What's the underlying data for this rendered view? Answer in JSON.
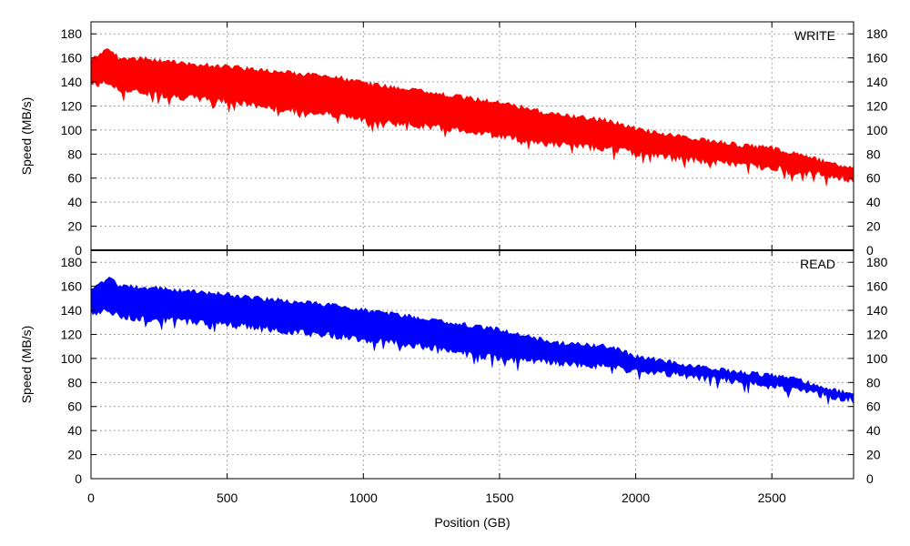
{
  "chart_data": [
    {
      "type": "area",
      "legend": "WRITE",
      "color": "#ff0000",
      "ylabel": "Speed (MB/s)",
      "xlim": [
        0,
        2800
      ],
      "ylim": [
        0,
        190
      ],
      "yticks": [
        0,
        20,
        40,
        60,
        80,
        100,
        120,
        140,
        160,
        180
      ],
      "grid": true,
      "legend_position": "top-right",
      "x": [
        0,
        70,
        100,
        200,
        350,
        500,
        700,
        900,
        1000,
        1200,
        1400,
        1500,
        1700,
        1900,
        2000,
        2200,
        2400,
        2500,
        2600,
        2700,
        2800
      ],
      "upper": [
        160,
        170,
        162,
        161,
        157,
        155,
        150,
        146,
        141,
        135,
        128,
        125,
        115,
        110,
        103,
        95,
        89,
        87,
        82,
        75,
        70
      ],
      "lower": [
        135,
        136,
        130,
        128,
        124,
        121,
        114,
        110,
        105,
        101,
        96,
        92,
        85,
        82,
        78,
        72,
        68,
        66,
        62,
        59,
        55
      ]
    },
    {
      "type": "area",
      "legend": "READ",
      "color": "#0000ff",
      "ylabel": "Speed (MB/s)",
      "xlabel": "Position (GB)",
      "xlim": [
        0,
        2800
      ],
      "ylim": [
        0,
        190
      ],
      "xticks": [
        0,
        500,
        1000,
        1500,
        2000,
        2500
      ],
      "yticks": [
        0,
        20,
        40,
        60,
        80,
        100,
        120,
        140,
        160,
        180
      ],
      "grid": true,
      "legend_position": "top-right",
      "x": [
        0,
        70,
        100,
        200,
        350,
        500,
        700,
        900,
        1000,
        1200,
        1400,
        1500,
        1700,
        1900,
        2000,
        2200,
        2400,
        2500,
        2600,
        2700,
        2800
      ],
      "upper": [
        160,
        170,
        162,
        161,
        158,
        155,
        150,
        146,
        142,
        136,
        129,
        126,
        115,
        112,
        104,
        96,
        90,
        88,
        84,
        77,
        72
      ],
      "lower": [
        135,
        136,
        132,
        130,
        128,
        126,
        120,
        116,
        113,
        108,
        100,
        97,
        93,
        90,
        86,
        82,
        77,
        74,
        70,
        66,
        62
      ]
    }
  ]
}
